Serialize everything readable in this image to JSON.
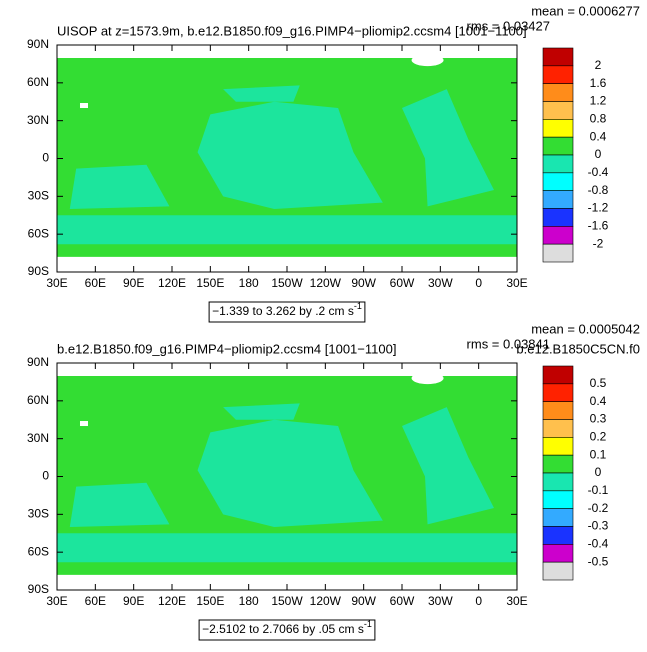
{
  "chart_data": [
    {
      "type": "map",
      "title": "UISOP at z=1573.9m, b.e12.B1850.f09_g16.PIMP4−pliomip2.ccsm4 [1001−1100]",
      "stats": [
        "mean = 0.0006277",
        "rms = 0.03427"
      ],
      "caption": "−1.339 to 3.262 by .2 cm s",
      "caption_exponent": "-1",
      "xlim": [
        30,
        390
      ],
      "ylim": [
        -90,
        90
      ],
      "xticks": [
        {
          "value": 30,
          "label": "30E"
        },
        {
          "value": 60,
          "label": "60E"
        },
        {
          "value": 90,
          "label": "90E"
        },
        {
          "value": 120,
          "label": "120E"
        },
        {
          "value": 150,
          "label": "150E"
        },
        {
          "value": 180,
          "label": "180"
        },
        {
          "value": 210,
          "label": "150W"
        },
        {
          "value": 240,
          "label": "120W"
        },
        {
          "value": 270,
          "label": "90W"
        },
        {
          "value": 300,
          "label": "60W"
        },
        {
          "value": 330,
          "label": "30W"
        },
        {
          "value": 360,
          "label": "0"
        },
        {
          "value": 390,
          "label": "30E"
        }
      ],
      "yticks": [
        {
          "value": 90,
          "label": "90N"
        },
        {
          "value": 60,
          "label": "60N"
        },
        {
          "value": 30,
          "label": "30N"
        },
        0,
        {
          "value": -30,
          "label": "30S"
        },
        {
          "value": -60,
          "label": "60S"
        },
        {
          "value": -90,
          "label": "90S"
        }
      ],
      "colorbar": {
        "labels": [
          2,
          1.6,
          1.2,
          0.8,
          0.4,
          0,
          -0.4,
          -0.8,
          -1.2,
          -1.6,
          -2
        ],
        "colors": [
          "#c00000",
          "#ff2200",
          "#ff8c1a",
          "#ffc04d",
          "#ffff00",
          "#33dd33",
          "#19e6b0",
          "#00ffff",
          "#33aaff",
          "#1a33ff",
          "#cc00cc",
          "#dddddd",
          "#777777"
        ]
      }
    },
    {
      "type": "map",
      "title": "b.e12.B1850.f09_g16.PIMP4−pliomip2.ccsm4 [1001−1100]",
      "stats": [
        "mean = 0.0005042",
        "rms = 0.03841"
      ],
      "subtitle_right": "b.e12.B1850C5CN.f0",
      "caption": "−2.5102 to 2.7066 by .05 cm s",
      "caption_exponent": "-1",
      "xlim": [
        30,
        390
      ],
      "ylim": [
        -90,
        90
      ],
      "xticks": [
        {
          "value": 30,
          "label": "30E"
        },
        {
          "value": 60,
          "label": "60E"
        },
        {
          "value": 90,
          "label": "90E"
        },
        {
          "value": 120,
          "label": "120E"
        },
        {
          "value": 150,
          "label": "150E"
        },
        {
          "value": 180,
          "label": "180"
        },
        {
          "value": 210,
          "label": "150W"
        },
        {
          "value": 240,
          "label": "120W"
        },
        {
          "value": 270,
          "label": "90W"
        },
        {
          "value": 300,
          "label": "60W"
        },
        {
          "value": 330,
          "label": "30W"
        },
        {
          "value": 360,
          "label": "0"
        },
        {
          "value": 390,
          "label": "30E"
        }
      ],
      "yticks": [
        {
          "value": 90,
          "label": "90N"
        },
        {
          "value": 60,
          "label": "60N"
        },
        {
          "value": 30,
          "label": "30N"
        },
        0,
        {
          "value": -30,
          "label": "30S"
        },
        {
          "value": -60,
          "label": "60S"
        },
        {
          "value": -90,
          "label": "90S"
        }
      ],
      "colorbar": {
        "labels": [
          0.5,
          0.4,
          0.3,
          0.2,
          0.1,
          0,
          -0.1,
          -0.2,
          -0.3,
          -0.4,
          -0.5
        ],
        "colors": [
          "#c00000",
          "#ff2200",
          "#ff8c1a",
          "#ffc04d",
          "#ffff00",
          "#33dd33",
          "#19e6b0",
          "#00ffff",
          "#33aaff",
          "#1a33ff",
          "#cc00cc",
          "#dddddd",
          "#777777"
        ]
      }
    }
  ]
}
